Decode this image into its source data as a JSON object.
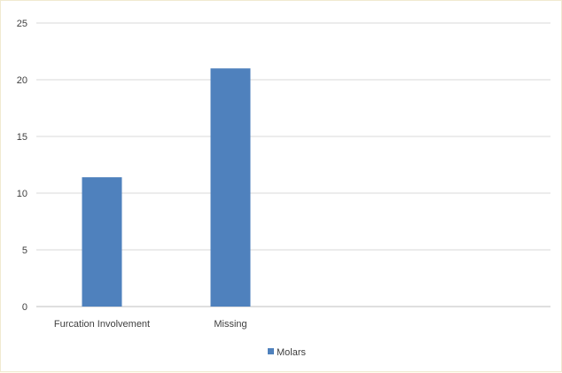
{
  "chart_data": {
    "type": "bar",
    "categories": [
      "Furcation Involvement",
      "Missing"
    ],
    "series": [
      {
        "name": "Molars",
        "values": [
          11.4,
          21
        ],
        "color": "#4f81bd"
      }
    ],
    "ylim": [
      0,
      25
    ],
    "yticks": [
      0,
      5,
      10,
      15,
      20,
      25
    ],
    "grid": true,
    "legend_position": "bottom"
  }
}
